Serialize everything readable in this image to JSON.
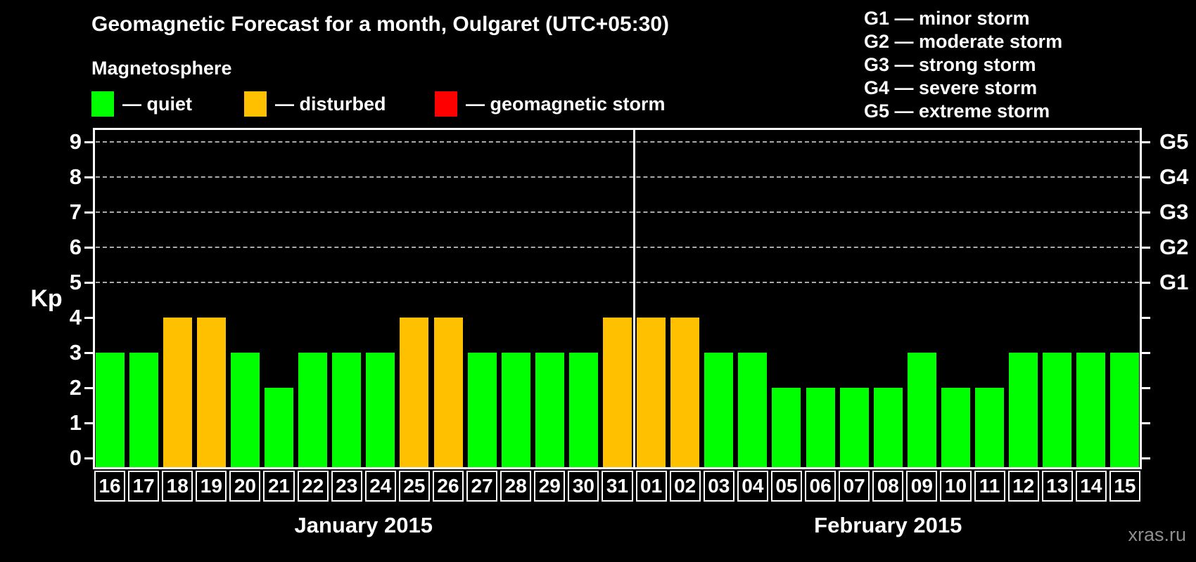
{
  "title": "Geomagnetic Forecast for a month, Oulgaret (UTC+05:30)",
  "watermark": "xras.ru",
  "magnetosphere_legend": {
    "heading": "Magnetosphere",
    "items": [
      {
        "name": "quiet",
        "label": "— quiet",
        "color": "#00FF00"
      },
      {
        "name": "disturbed",
        "label": "— disturbed",
        "color": "#FFC000"
      },
      {
        "name": "storm",
        "label": "— geomagnetic storm",
        "color": "#FF0000"
      }
    ]
  },
  "storm_scale_legend": {
    "items": [
      "G1 — minor storm",
      "G2 — moderate storm",
      "G3 — strong storm",
      "G4 — severe storm",
      "G5 — extreme storm"
    ]
  },
  "chart_data": {
    "type": "bar",
    "title": "Geomagnetic Forecast for a month, Oulgaret (UTC+05:30)",
    "xlabel": "",
    "ylabel": "Kp",
    "ylim": [
      0,
      9
    ],
    "yticks": [
      0,
      1,
      2,
      3,
      4,
      5,
      6,
      7,
      8,
      9
    ],
    "gridlines_at": [
      5,
      6,
      7,
      8,
      9
    ],
    "grid": "dashed horizontal, upper half only",
    "legend_position": "top",
    "right_axis_labels": [
      {
        "label": "G1",
        "kp": 5
      },
      {
        "label": "G2",
        "kp": 6
      },
      {
        "label": "G3",
        "kp": 7
      },
      {
        "label": "G4",
        "kp": 8
      },
      {
        "label": "G5",
        "kp": 9
      }
    ],
    "months": [
      {
        "label": "January 2015",
        "count": 16
      },
      {
        "label": "February 2015",
        "count": 15
      }
    ],
    "categories": [
      "16",
      "17",
      "18",
      "19",
      "20",
      "21",
      "22",
      "23",
      "24",
      "25",
      "26",
      "27",
      "28",
      "29",
      "30",
      "31",
      "01",
      "02",
      "03",
      "04",
      "05",
      "06",
      "07",
      "08",
      "09",
      "10",
      "11",
      "12",
      "13",
      "14",
      "15"
    ],
    "series": [
      {
        "name": "Kp forecast",
        "values": [
          3,
          3,
          4,
          4,
          3,
          2,
          3,
          3,
          3,
          4,
          4,
          3,
          3,
          3,
          3,
          4,
          4,
          4,
          3,
          3,
          2,
          2,
          2,
          2,
          3,
          2,
          2,
          3,
          3,
          3,
          3
        ]
      }
    ],
    "statuses": [
      "quiet",
      "quiet",
      "disturbed",
      "disturbed",
      "quiet",
      "quiet",
      "quiet",
      "quiet",
      "quiet",
      "disturbed",
      "disturbed",
      "quiet",
      "quiet",
      "quiet",
      "quiet",
      "disturbed",
      "disturbed",
      "disturbed",
      "quiet",
      "quiet",
      "quiet",
      "quiet",
      "quiet",
      "quiet",
      "quiet",
      "quiet",
      "quiet",
      "quiet",
      "quiet",
      "quiet",
      "quiet"
    ],
    "colors": {
      "quiet": "#00FF00",
      "disturbed": "#FFC000",
      "storm": "#FF0000"
    }
  }
}
